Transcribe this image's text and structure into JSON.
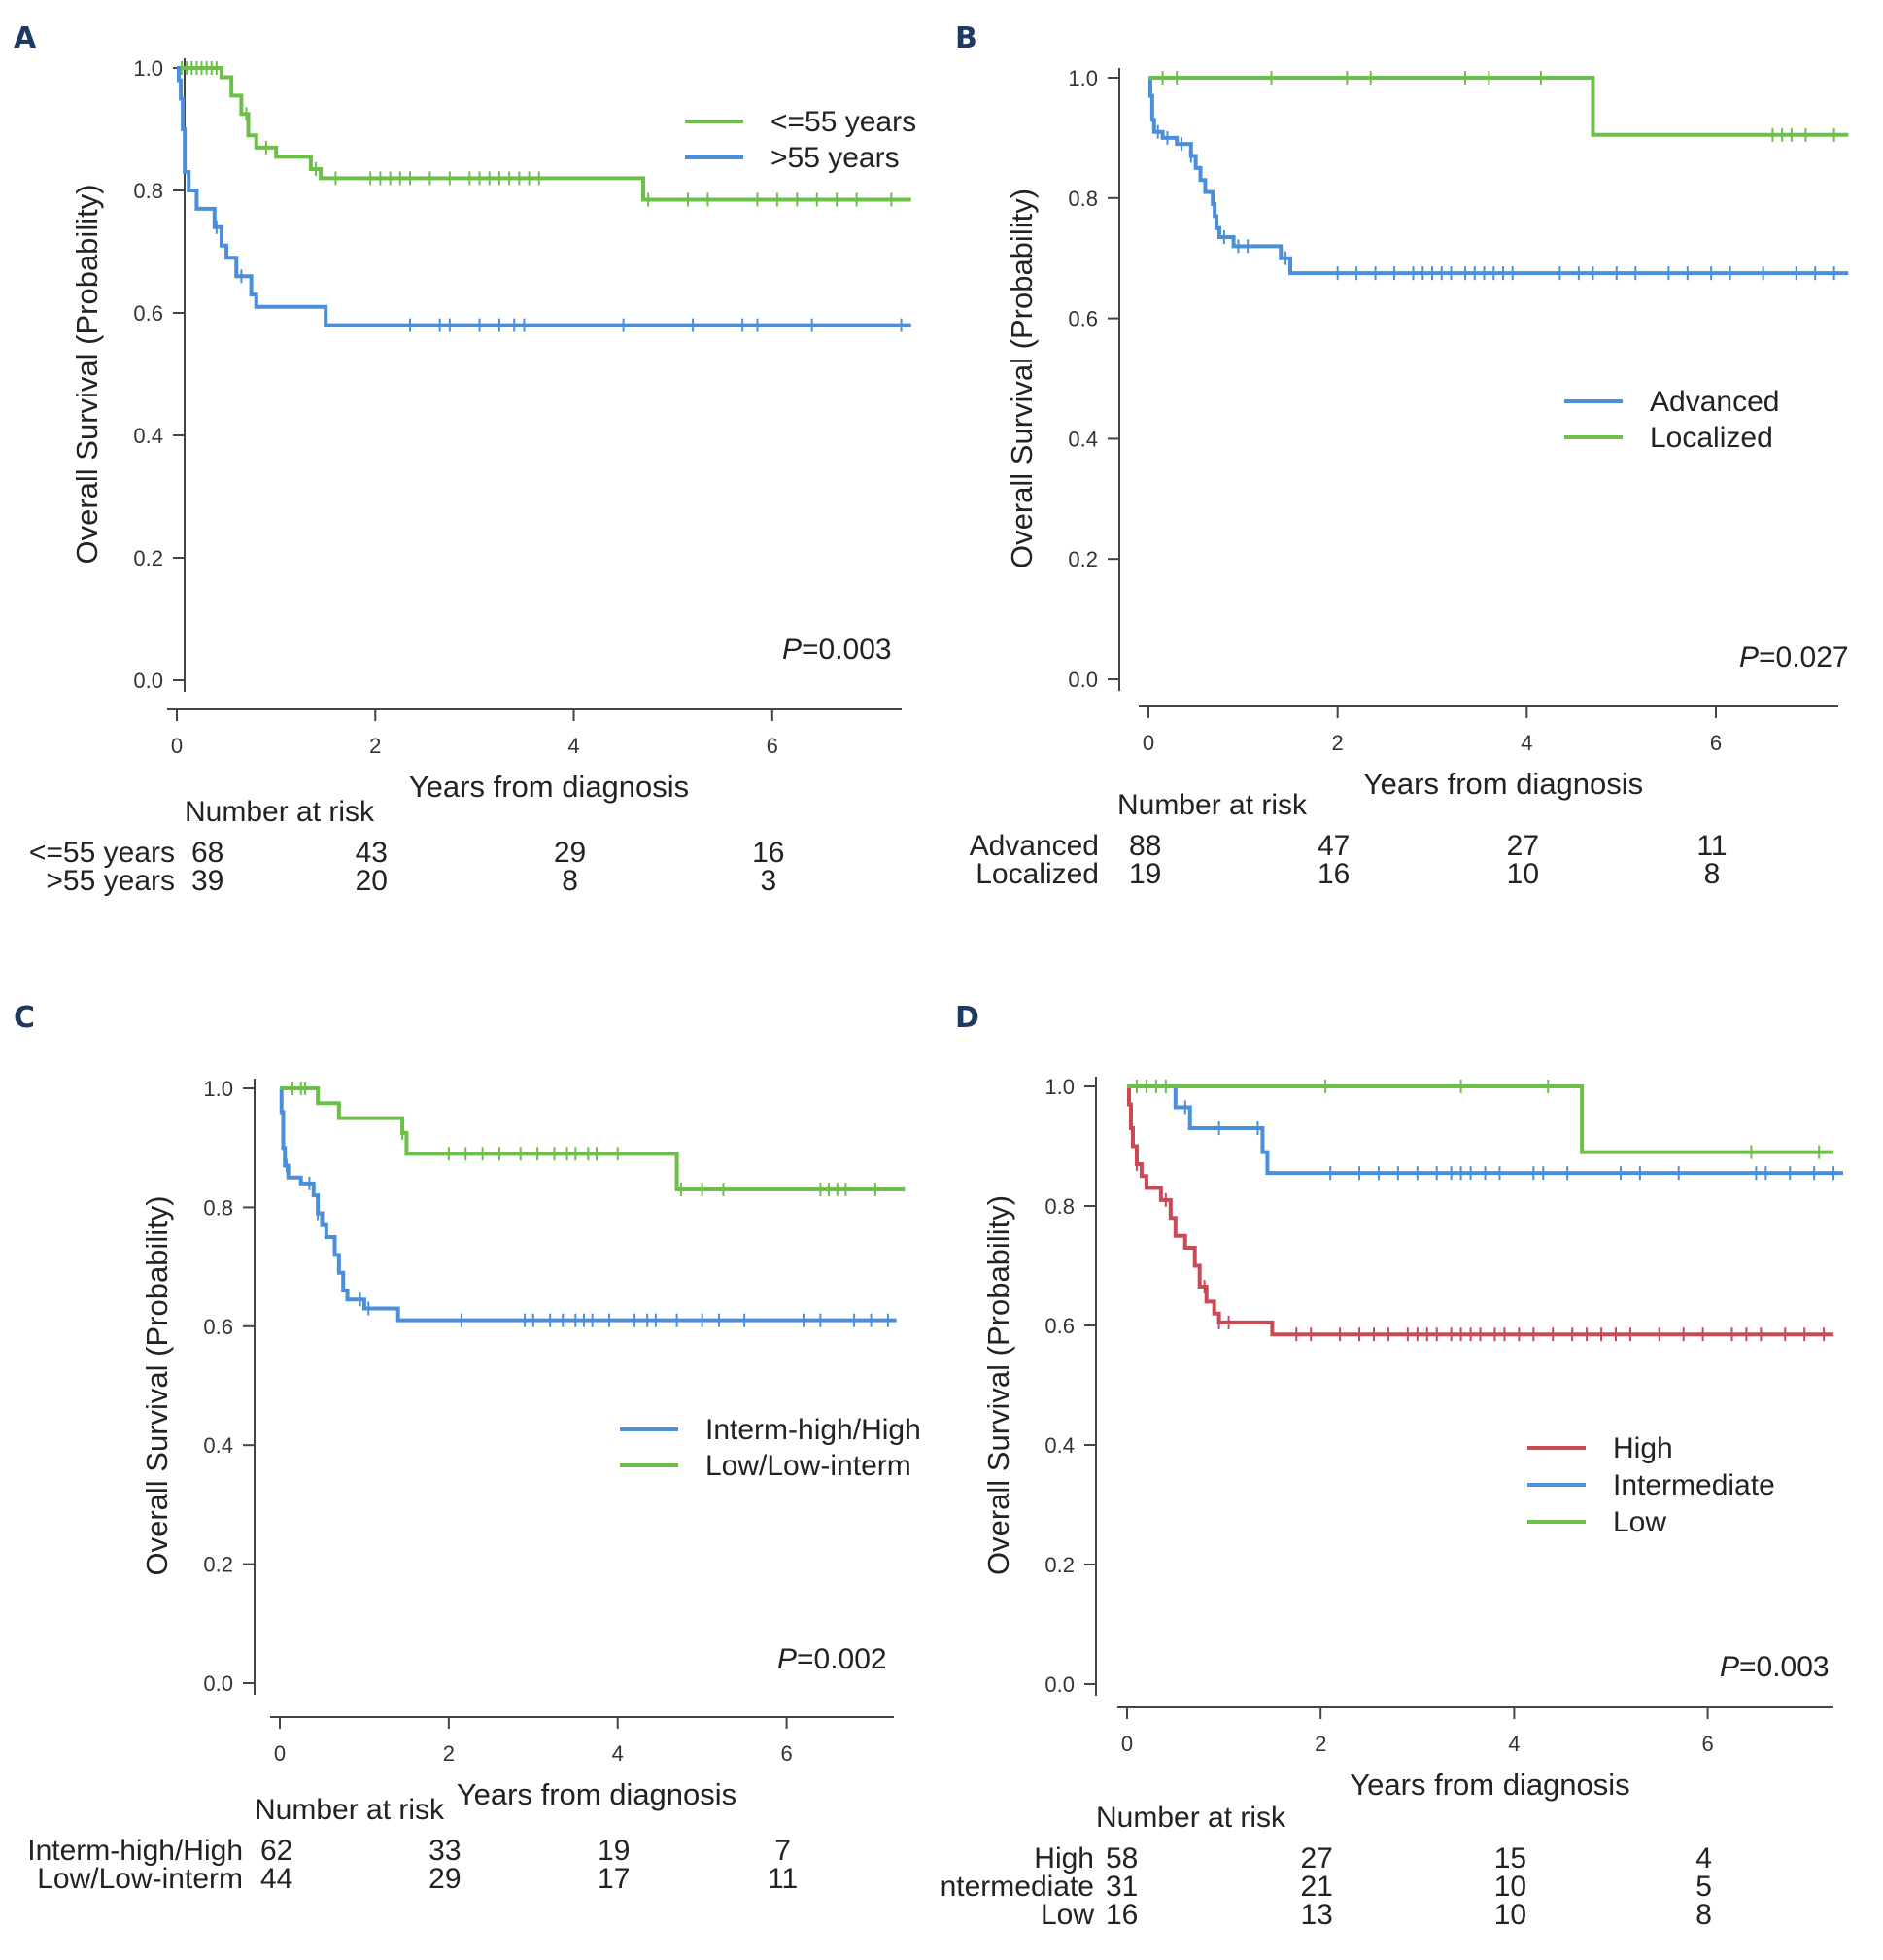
{
  "colors": {
    "green": "#6cc04a",
    "blue": "#4a8fdc",
    "red": "#c94a55",
    "axis": "#444444"
  },
  "risk_header": "Number at risk",
  "chart_data": [
    {
      "panel": "A",
      "type": "line",
      "title": "",
      "xlabel": "Years from diagnosis",
      "ylabel": "Overall Survival (Probability)",
      "xlim": [
        0,
        7.5
      ],
      "ylim": [
        0,
        1
      ],
      "xticks": [
        "0",
        "2",
        "4",
        "6"
      ],
      "yticks": [
        "0.0",
        "0.2",
        "0.4",
        "0.6",
        "0.8",
        "1.0"
      ],
      "p_value_prefix": "P",
      "p_value": "=0.003",
      "legend_position": "top-right",
      "series": [
        {
          "name": "<=55 years",
          "color": "green",
          "risk": [
            "68",
            "43",
            "29",
            "16"
          ],
          "steps": [
            [
              0,
              1.0
            ],
            [
              0.45,
              0.985
            ],
            [
              0.55,
              0.955
            ],
            [
              0.65,
              0.925
            ],
            [
              0.72,
              0.89
            ],
            [
              0.8,
              0.87
            ],
            [
              1.0,
              0.855
            ],
            [
              1.35,
              0.835
            ],
            [
              1.45,
              0.82
            ],
            [
              4.7,
              0.785
            ],
            [
              7.4,
              0.785
            ]
          ],
          "censors": [
            0.05,
            0.1,
            0.15,
            0.2,
            0.25,
            0.3,
            0.35,
            0.4,
            0.7,
            0.9,
            1.4,
            1.6,
            1.95,
            2.05,
            2.15,
            2.25,
            2.35,
            2.55,
            2.75,
            2.95,
            3.05,
            3.15,
            3.25,
            3.35,
            3.45,
            3.55,
            3.65,
            4.75,
            5.15,
            5.35,
            5.85,
            6.05,
            6.25,
            6.45,
            6.65,
            6.85,
            7.2
          ]
        },
        {
          "name": ">55 years",
          "color": "blue",
          "risk": [
            "39",
            "20",
            "8",
            "3"
          ],
          "steps": [
            [
              0,
              1.0
            ],
            [
              0.02,
              0.98
            ],
            [
              0.04,
              0.95
            ],
            [
              0.06,
              0.9
            ],
            [
              0.08,
              0.83
            ],
            [
              0.12,
              0.8
            ],
            [
              0.2,
              0.77
            ],
            [
              0.38,
              0.74
            ],
            [
              0.45,
              0.71
            ],
            [
              0.5,
              0.69
            ],
            [
              0.6,
              0.66
            ],
            [
              0.75,
              0.63
            ],
            [
              0.8,
              0.61
            ],
            [
              1.5,
              0.58
            ],
            [
              7.4,
              0.58
            ]
          ],
          "censors": [
            0.4,
            0.65,
            2.35,
            2.65,
            2.75,
            3.05,
            3.25,
            3.4,
            3.5,
            4.5,
            5.2,
            5.7,
            5.85,
            6.4,
            7.3
          ]
        }
      ]
    },
    {
      "panel": "B",
      "type": "line",
      "title": "",
      "xlabel": "Years from diagnosis",
      "ylabel": "Overall Survival (Probability)",
      "xlim": [
        0,
        7.5
      ],
      "ylim": [
        0,
        1
      ],
      "xticks": [
        "0",
        "2",
        "4",
        "6"
      ],
      "yticks": [
        "0.0",
        "0.2",
        "0.4",
        "0.6",
        "0.8",
        "1.0"
      ],
      "p_value_prefix": "P",
      "p_value": "=0.027",
      "legend_position": "center-right",
      "series": [
        {
          "name": "Advanced",
          "color": "blue",
          "risk": [
            "88",
            "47",
            "27",
            "11"
          ],
          "steps": [
            [
              0,
              1.0
            ],
            [
              0.02,
              0.97
            ],
            [
              0.04,
              0.93
            ],
            [
              0.06,
              0.91
            ],
            [
              0.15,
              0.9
            ],
            [
              0.3,
              0.89
            ],
            [
              0.45,
              0.87
            ],
            [
              0.5,
              0.85
            ],
            [
              0.55,
              0.83
            ],
            [
              0.6,
              0.81
            ],
            [
              0.68,
              0.79
            ],
            [
              0.7,
              0.77
            ],
            [
              0.72,
              0.75
            ],
            [
              0.75,
              0.735
            ],
            [
              0.9,
              0.72
            ],
            [
              1.4,
              0.7
            ],
            [
              1.5,
              0.675
            ],
            [
              7.4,
              0.675
            ]
          ],
          "censors": [
            0.1,
            0.2,
            0.35,
            0.45,
            0.8,
            0.95,
            1.05,
            1.45,
            2.0,
            2.2,
            2.4,
            2.6,
            2.8,
            2.9,
            3.0,
            3.1,
            3.2,
            3.35,
            3.45,
            3.55,
            3.65,
            3.75,
            3.85,
            4.35,
            4.55,
            4.7,
            4.95,
            5.15,
            5.5,
            5.7,
            5.95,
            6.15,
            6.5,
            6.85,
            7.05,
            7.25
          ]
        },
        {
          "name": "Localized",
          "color": "green",
          "risk": [
            "19",
            "16",
            "10",
            "8"
          ],
          "steps": [
            [
              0,
              1.0
            ],
            [
              4.7,
              0.905
            ],
            [
              7.4,
              0.905
            ]
          ],
          "censors": [
            0.15,
            0.3,
            1.3,
            2.1,
            2.35,
            3.35,
            3.6,
            4.15,
            6.6,
            6.7,
            6.8,
            6.95,
            7.25
          ]
        }
      ]
    },
    {
      "panel": "C",
      "type": "line",
      "title": "",
      "xlabel": "Years from diagnosis",
      "ylabel": "Overall Survival (Probability)",
      "xlim": [
        0,
        7.5
      ],
      "ylim": [
        0,
        1
      ],
      "xticks": [
        "0",
        "2",
        "4",
        "6"
      ],
      "yticks": [
        "0.0",
        "0.2",
        "0.4",
        "0.6",
        "0.8",
        "1.0"
      ],
      "p_value_prefix": "P",
      "p_value": "=0.002",
      "legend_position": "center-right",
      "series": [
        {
          "name": "Interm-high/High",
          "color": "blue",
          "risk": [
            "62",
            "33",
            "19",
            "7"
          ],
          "steps": [
            [
              0,
              1.0
            ],
            [
              0.02,
              0.96
            ],
            [
              0.04,
              0.9
            ],
            [
              0.06,
              0.87
            ],
            [
              0.1,
              0.85
            ],
            [
              0.25,
              0.84
            ],
            [
              0.4,
              0.82
            ],
            [
              0.45,
              0.79
            ],
            [
              0.5,
              0.77
            ],
            [
              0.55,
              0.75
            ],
            [
              0.65,
              0.72
            ],
            [
              0.7,
              0.69
            ],
            [
              0.75,
              0.66
            ],
            [
              0.8,
              0.645
            ],
            [
              1.0,
              0.63
            ],
            [
              1.4,
              0.61
            ],
            [
              7.3,
              0.61
            ]
          ],
          "censors": [
            0.08,
            0.35,
            0.45,
            0.95,
            1.05,
            2.15,
            2.9,
            3.0,
            3.2,
            3.35,
            3.5,
            3.6,
            3.7,
            3.9,
            4.2,
            4.35,
            4.45,
            4.7,
            5.0,
            5.2,
            5.5,
            6.2,
            6.4,
            6.8,
            7.0,
            7.2
          ]
        },
        {
          "name": "Low/Low-interm",
          "color": "green",
          "risk": [
            "44",
            "29",
            "17",
            "11"
          ],
          "steps": [
            [
              0,
              1.0
            ],
            [
              0.45,
              0.975
            ],
            [
              0.7,
              0.95
            ],
            [
              1.45,
              0.925
            ],
            [
              1.5,
              0.89
            ],
            [
              4.7,
              0.83
            ],
            [
              7.4,
              0.83
            ]
          ],
          "censors": [
            0.15,
            0.25,
            0.3,
            1.45,
            2.0,
            2.2,
            2.4,
            2.6,
            2.85,
            3.05,
            3.25,
            3.4,
            3.5,
            3.65,
            3.75,
            4.0,
            4.75,
            5.0,
            5.25,
            6.4,
            6.5,
            6.6,
            6.7,
            7.05
          ]
        }
      ]
    },
    {
      "panel": "D",
      "type": "line",
      "title": "",
      "xlabel": "Years from diagnosis",
      "ylabel": "Overall Survival (Probability)",
      "xlim": [
        0,
        7.5
      ],
      "ylim": [
        0,
        1
      ],
      "xticks": [
        "0",
        "2",
        "4",
        "6"
      ],
      "yticks": [
        "0.0",
        "0.2",
        "0.4",
        "0.6",
        "0.8",
        "1.0"
      ],
      "p_value_prefix": "P",
      "p_value": "=0.003",
      "legend_position": "center-right",
      "series": [
        {
          "name": "High",
          "color": "red",
          "risk": [
            "58",
            "27",
            "15",
            "4"
          ],
          "steps": [
            [
              0,
              1.0
            ],
            [
              0.02,
              0.97
            ],
            [
              0.04,
              0.93
            ],
            [
              0.06,
              0.9
            ],
            [
              0.1,
              0.87
            ],
            [
              0.15,
              0.85
            ],
            [
              0.2,
              0.83
            ],
            [
              0.35,
              0.81
            ],
            [
              0.45,
              0.78
            ],
            [
              0.5,
              0.75
            ],
            [
              0.6,
              0.73
            ],
            [
              0.7,
              0.7
            ],
            [
              0.75,
              0.665
            ],
            [
              0.82,
              0.64
            ],
            [
              0.9,
              0.62
            ],
            [
              0.95,
              0.605
            ],
            [
              1.5,
              0.585
            ],
            [
              7.3,
              0.585
            ]
          ],
          "censors": [
            0.1,
            0.4,
            0.8,
            0.95,
            1.05,
            1.75,
            1.9,
            2.2,
            2.4,
            2.55,
            2.7,
            2.9,
            3.0,
            3.1,
            3.2,
            3.35,
            3.45,
            3.55,
            3.65,
            3.8,
            3.9,
            4.05,
            4.2,
            4.4,
            4.6,
            4.75,
            4.9,
            5.05,
            5.2,
            5.5,
            5.75,
            5.95,
            6.25,
            6.4,
            6.55,
            6.8,
            7.0,
            7.2
          ]
        },
        {
          "name": "Intermediate",
          "color": "blue",
          "risk": [
            "31",
            "21",
            "10",
            "5"
          ],
          "steps": [
            [
              0,
              1.0
            ],
            [
              0.5,
              0.965
            ],
            [
              0.65,
              0.93
            ],
            [
              1.4,
              0.89
            ],
            [
              1.45,
              0.855
            ],
            [
              7.4,
              0.855
            ]
          ],
          "censors": [
            0.6,
            0.95,
            1.35,
            2.1,
            2.4,
            2.6,
            2.8,
            3.0,
            3.2,
            3.35,
            3.45,
            3.55,
            3.7,
            3.85,
            4.2,
            4.3,
            4.55,
            5.1,
            5.3,
            5.7,
            6.5,
            6.6,
            6.85,
            7.1,
            7.3
          ]
        },
        {
          "name": "Low",
          "color": "green",
          "risk": [
            "16",
            "13",
            "10",
            "8"
          ],
          "steps": [
            [
              0,
              1.0
            ],
            [
              4.7,
              0.89
            ],
            [
              7.3,
              0.89
            ]
          ],
          "censors": [
            0.1,
            0.2,
            0.3,
            0.4,
            2.05,
            3.45,
            4.35,
            6.45,
            7.15
          ]
        }
      ]
    }
  ]
}
